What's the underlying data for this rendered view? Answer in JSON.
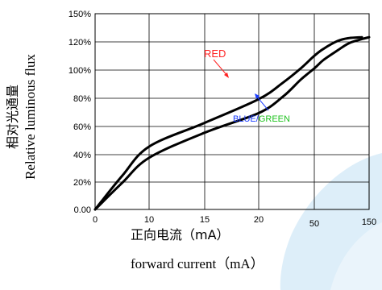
{
  "chart_data": {
    "type": "line",
    "x_ticks": [
      "0",
      "10",
      "15",
      "20",
      "50",
      "150"
    ],
    "y_ticks": [
      "0.00",
      "20%",
      "40%",
      "60%",
      "80%",
      "100%",
      "120%",
      "150%"
    ],
    "series": [
      {
        "name": "RED",
        "x": [
          0,
          5,
          10,
          15,
          20,
          30,
          40,
          50,
          60,
          80,
          100,
          130
        ],
        "y": [
          0,
          24,
          45,
          62,
          79,
          91,
          101,
          110,
          115,
          121,
          124,
          125
        ]
      },
      {
        "name": "BLUE/GREEN",
        "x": [
          0,
          5,
          10,
          15,
          20,
          30,
          40,
          50,
          60,
          80,
          100,
          130,
          150
        ],
        "y": [
          0,
          19,
          37,
          55,
          69,
          81,
          93,
          101,
          107,
          114,
          119,
          123,
          125
        ]
      }
    ],
    "annotations": {
      "red": "RED",
      "blue": "BLUE",
      "slash": "/",
      "green": "GREEN"
    },
    "ylabel_cn": "相对光通量",
    "ylabel_en": "Relative luminous flux",
    "xlabel_cn": "正向电流（mA）",
    "xlabel_en": "forward current（mA）",
    "colors": {
      "red": "#ff2222",
      "blue": "#1a3cff",
      "green": "#1ec21e",
      "watermark": "#d9ecf8"
    }
  }
}
